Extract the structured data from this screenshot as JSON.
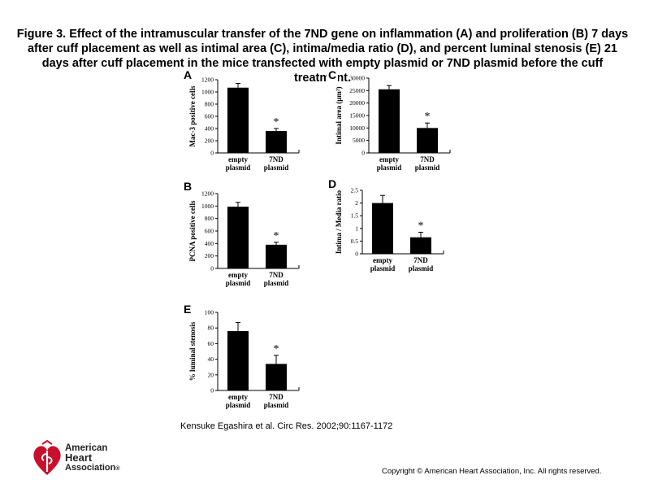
{
  "figure": {
    "title": "Figure 3. Effect of the intramuscular transfer of the 7ND gene on inflammation (A) and proliferation (B) 7 days after cuff placement as well as intimal area (C), intima/media ratio (D), and percent luminal stenosis (E) 21 days after cuff placement in the mice transfected with empty plasmid or 7ND plasmid before the cuff treatment."
  },
  "footer": {
    "citation": "Kensuke Egashira et al. Circ Res. 2002;90:1167-1172",
    "copyright": "Copyright © American Heart Association, Inc. All rights reserved.",
    "logo_line1": "American",
    "logo_line2": "Heart",
    "logo_line3": "Association",
    "logo_mark": "®"
  },
  "chart_data": [
    {
      "panel": "A",
      "type": "bar",
      "categories": [
        "empty plasmid",
        "7ND plasmid"
      ],
      "values": [
        1070,
        360
      ],
      "errors": [
        70,
        40
      ],
      "ylabel": "Mac-3 positive cells",
      "ylim": [
        0,
        1200
      ],
      "yticks": [
        0,
        200,
        400,
        600,
        800,
        1000,
        1200
      ],
      "significance": [
        "",
        "*"
      ]
    },
    {
      "panel": "B",
      "type": "bar",
      "categories": [
        "empty plasmid",
        "7ND plasmid"
      ],
      "values": [
        990,
        380
      ],
      "errors": [
        70,
        40
      ],
      "ylabel": "PCNA positive cells",
      "ylim": [
        0,
        1200
      ],
      "yticks": [
        0,
        200,
        400,
        600,
        800,
        1000,
        1200
      ],
      "significance": [
        "",
        "*"
      ]
    },
    {
      "panel": "C",
      "type": "bar",
      "categories": [
        "empty plasmid",
        "7ND plasmid"
      ],
      "values": [
        25500,
        10000
      ],
      "errors": [
        1500,
        2000
      ],
      "ylabel": "Intimal area (μm²)",
      "ylim": [
        0,
        30000
      ],
      "yticks": [
        0,
        5000,
        10000,
        15000,
        20000,
        25000,
        30000
      ],
      "significance": [
        "",
        "*"
      ]
    },
    {
      "panel": "D",
      "type": "bar",
      "categories": [
        "empty plasmid",
        "7ND plasmid"
      ],
      "values": [
        2.0,
        0.65
      ],
      "errors": [
        0.3,
        0.2
      ],
      "ylabel": "Intima / Media ratio",
      "ylim": [
        0,
        2.5
      ],
      "yticks": [
        0,
        0.5,
        1.0,
        1.5,
        2.0,
        2.5
      ],
      "significance": [
        "",
        "*"
      ]
    },
    {
      "panel": "E",
      "type": "bar",
      "categories": [
        "empty plasmid",
        "7ND plasmid"
      ],
      "values": [
        76,
        34
      ],
      "errors": [
        11,
        11
      ],
      "ylabel": "% luminal stenosis",
      "ylim": [
        0,
        100
      ],
      "yticks": [
        0,
        20,
        40,
        60,
        80,
        100
      ],
      "significance": [
        "",
        "*"
      ]
    }
  ]
}
